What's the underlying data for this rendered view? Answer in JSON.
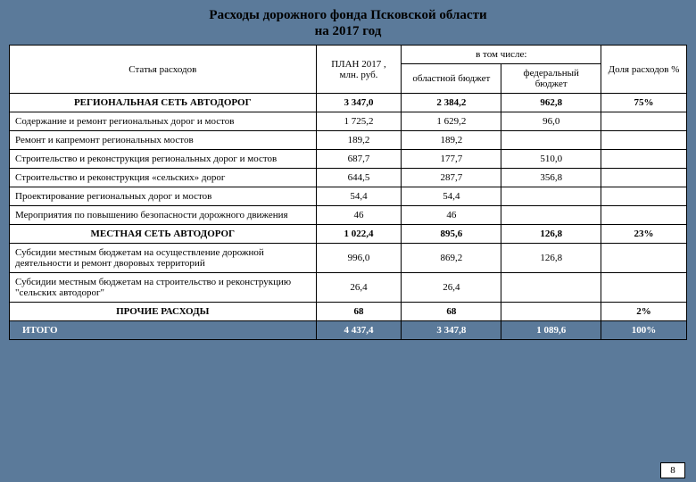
{
  "title_line1": "Расходы дорожного фонда Псковской области",
  "title_line2": "на 2017 год",
  "headers": {
    "article": "Статья расходов",
    "plan": "ПЛАН 2017 , млн. руб.",
    "including": "в том числе:",
    "regional_budget": "областной бюджет",
    "federal_budget": "федеральный бюджет",
    "share": "Доля расходов %"
  },
  "sections": [
    {
      "name": "РЕГИОНАЛЬНАЯ СЕТЬ АВТОДОРОГ",
      "plan": "3 347,0",
      "regional": "2 384,2",
      "federal": "962,8",
      "share": "75%",
      "rows": [
        {
          "name": "Содержание и ремонт региональных дорог и мостов",
          "plan": "1 725,2",
          "regional": "1 629,2",
          "federal": "96,0",
          "share": ""
        },
        {
          "name": "Ремонт и капремонт региональных мостов",
          "plan": "189,2",
          "regional": "189,2",
          "federal": "",
          "share": ""
        },
        {
          "name": "Строительство и реконструкция региональных дорог и мостов",
          "plan": "687,7",
          "regional": "177,7",
          "federal": "510,0",
          "share": ""
        },
        {
          "name": "Строительство и реконструкция «сельских» дорог",
          "plan": "644,5",
          "regional": "287,7",
          "federal": "356,8",
          "share": ""
        },
        {
          "name": "Проектирование региональных дорог и мостов",
          "plan": "54,4",
          "regional": "54,4",
          "federal": "",
          "share": ""
        },
        {
          "name": "Мероприятия по повышению безопасности дорожного движения",
          "plan": "46",
          "regional": "46",
          "federal": "",
          "share": ""
        }
      ]
    },
    {
      "name": "МЕСТНАЯ СЕТЬ АВТОДОРОГ",
      "plan": "1 022,4",
      "regional": "895,6",
      "federal": "126,8",
      "share": "23%",
      "rows": [
        {
          "name": "Субсидии местным бюджетам на осуществление дорожной деятельности и ремонт дворовых территорий",
          "plan": "996,0",
          "regional": "869,2",
          "federal": "126,8",
          "share": ""
        },
        {
          "name": "Субсидии местным бюджетам на строительство и реконструкцию \"сельских автодорог\"",
          "plan": "26,4",
          "regional": "26,4",
          "federal": "",
          "share": ""
        }
      ]
    },
    {
      "name": "ПРОЧИЕ РАСХОДЫ",
      "plan": "68",
      "regional": "68",
      "federal": "",
      "share": "2%",
      "rows": []
    }
  ],
  "total": {
    "name": "ИТОГО",
    "plan": "4 437,4",
    "regional": "3 347,8",
    "federal": "1 089,6",
    "share": "100%"
  },
  "page_number": "8",
  "colors": {
    "page_bg": "#5b7a9a",
    "table_bg": "#ffffff",
    "border": "#000000",
    "total_bg": "#5b7a9a",
    "total_text": "#ffffff"
  }
}
